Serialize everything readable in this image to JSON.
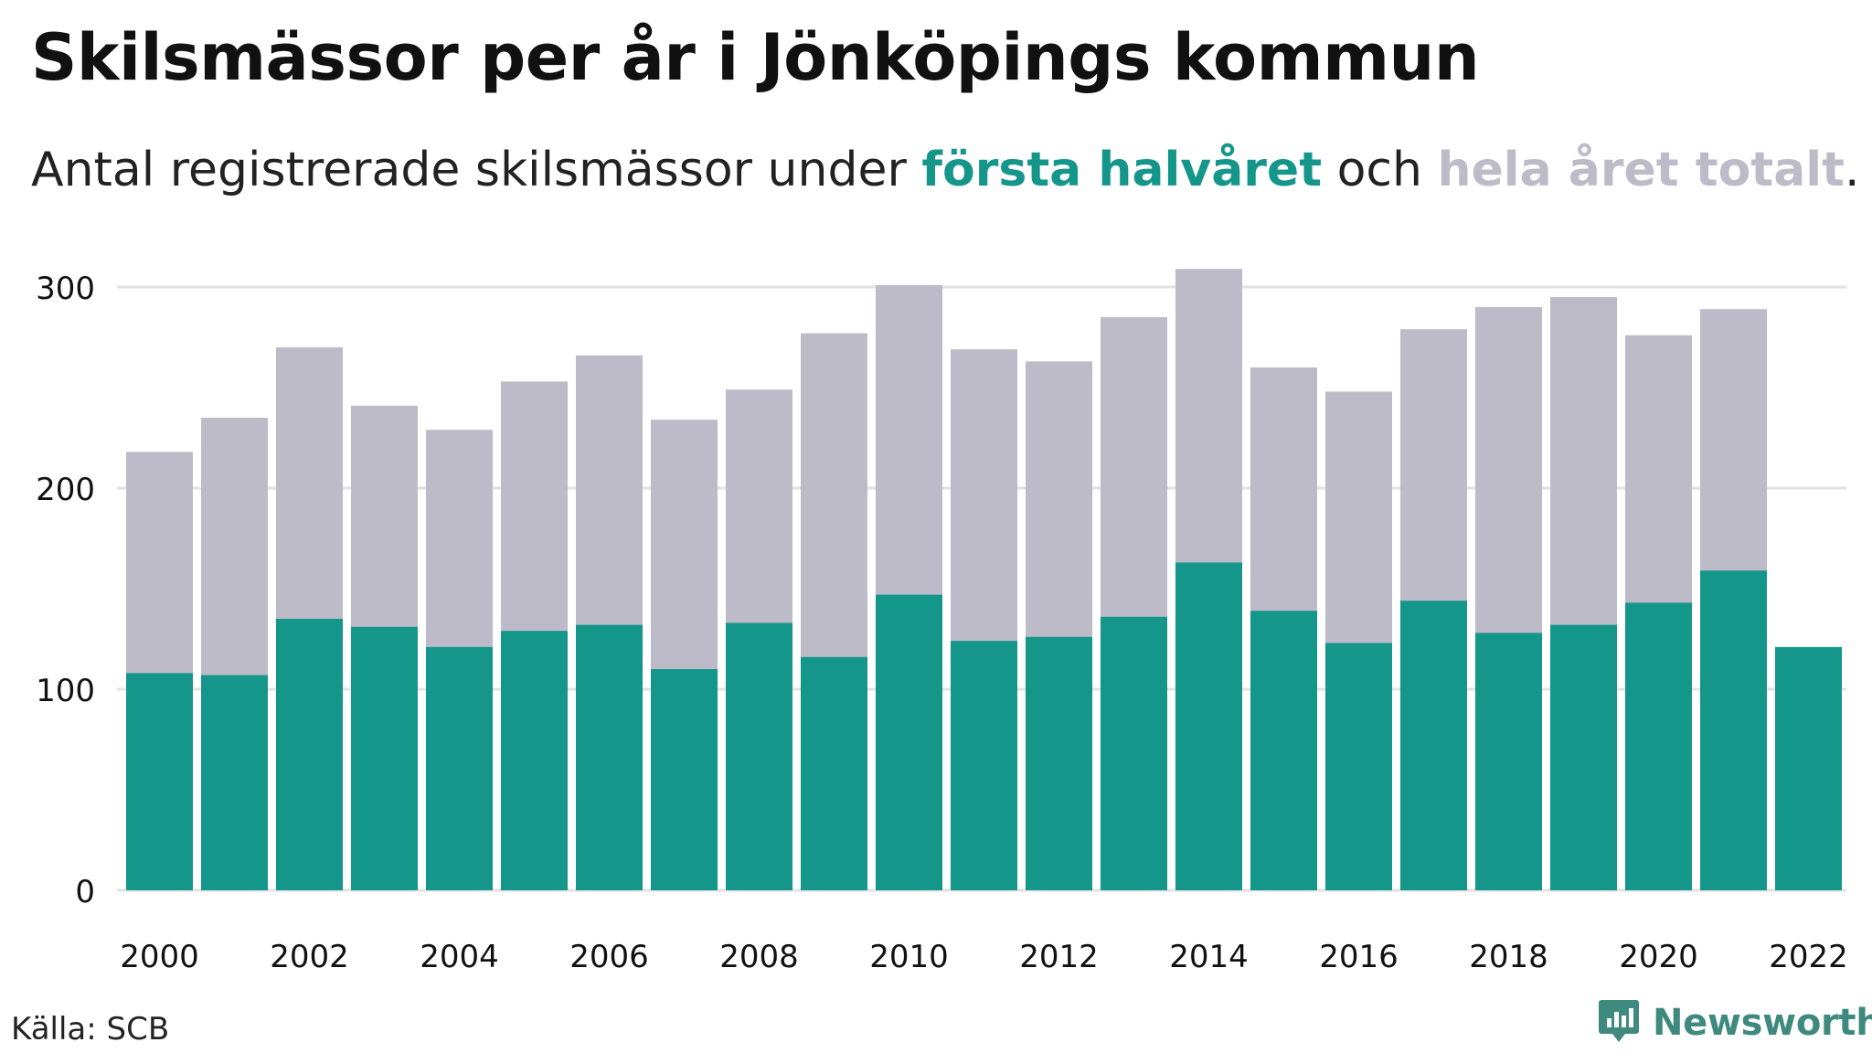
{
  "header": {
    "title": "Skilsmässor per år i Jönköpings kommun",
    "subtitle_prefix": "Antal registrerade skilsmässor under ",
    "subtitle_first": "första halvåret",
    "subtitle_mid": " och ",
    "subtitle_total": "hela året totalt",
    "subtitle_suffix": "."
  },
  "footer": {
    "source": "Källa: SCB",
    "brand": "Newsworthy",
    "brand_icon": "newsworthy-logo-icon"
  },
  "colors": {
    "first_half": "#14968a",
    "full_year": "#bdbbc8",
    "grid": "#e2e2e2",
    "text": "#111111",
    "brand": "#3f8a7e"
  },
  "chart_data": {
    "type": "bar",
    "categories": [
      "2000",
      "2001",
      "2002",
      "2003",
      "2004",
      "2005",
      "2006",
      "2007",
      "2008",
      "2009",
      "2010",
      "2011",
      "2012",
      "2013",
      "2014",
      "2015",
      "2016",
      "2017",
      "2018",
      "2019",
      "2020",
      "2021",
      "2022"
    ],
    "x_tick_labels": [
      "2000",
      "2002",
      "2004",
      "2006",
      "2008",
      "2010",
      "2012",
      "2014",
      "2016",
      "2018",
      "2020",
      "2022"
    ],
    "y_ticks": [
      0,
      100,
      200,
      300
    ],
    "ylim": [
      0,
      320
    ],
    "grid": true,
    "series": [
      {
        "name": "hela året totalt",
        "color": "#bdbbc8",
        "values": [
          218,
          235,
          270,
          241,
          229,
          253,
          266,
          234,
          249,
          277,
          301,
          269,
          263,
          285,
          309,
          260,
          248,
          279,
          290,
          295,
          276,
          289,
          null
        ]
      },
      {
        "name": "första halvåret",
        "color": "#14968a",
        "values": [
          108,
          107,
          135,
          131,
          121,
          129,
          132,
          110,
          133,
          116,
          147,
          124,
          126,
          136,
          163,
          139,
          123,
          144,
          128,
          132,
          143,
          159,
          121
        ]
      }
    ]
  }
}
